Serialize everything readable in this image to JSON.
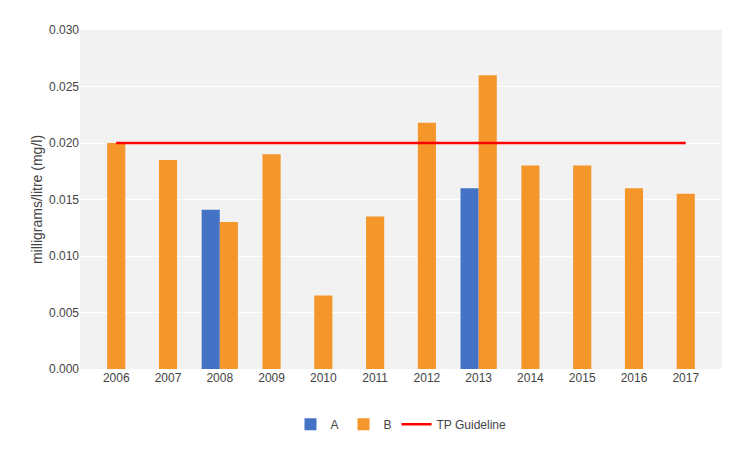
{
  "chart_data": {
    "type": "bar",
    "categories": [
      "2006",
      "2007",
      "2008",
      "2009",
      "2010",
      "2011",
      "2012",
      "2013",
      "2014",
      "2015",
      "2016",
      "2017"
    ],
    "series": [
      {
        "name": "A",
        "color": "#4472C4",
        "values": [
          null,
          null,
          0.0141,
          null,
          null,
          null,
          null,
          0.016,
          null,
          null,
          null,
          null
        ]
      },
      {
        "name": "B",
        "color": "#F4962A",
        "values": [
          0.02,
          0.0185,
          0.013,
          0.019,
          0.0065,
          0.0135,
          0.0218,
          0.026,
          0.018,
          0.018,
          0.016,
          0.0155
        ]
      },
      {
        "name": "TP Guideline",
        "type": "line",
        "color": "#FF0000",
        "values": [
          0.02,
          0.02,
          0.02,
          0.02,
          0.02,
          0.02,
          0.02,
          0.02,
          0.02,
          0.02,
          0.02,
          0.02
        ]
      }
    ],
    "ylabel": "milligrams/litre (mg/l)",
    "ylim": [
      0,
      0.03
    ],
    "yticks": [
      {
        "value": 0,
        "label": "0.000"
      },
      0.005,
      {
        "value": 0.01,
        "label": "0.010"
      },
      0.015,
      {
        "value": 0.02,
        "label": "0.020"
      },
      0.025,
      {
        "value": 0.03,
        "label": "0.030"
      }
    ],
    "grid": true,
    "legend": "bottom"
  }
}
